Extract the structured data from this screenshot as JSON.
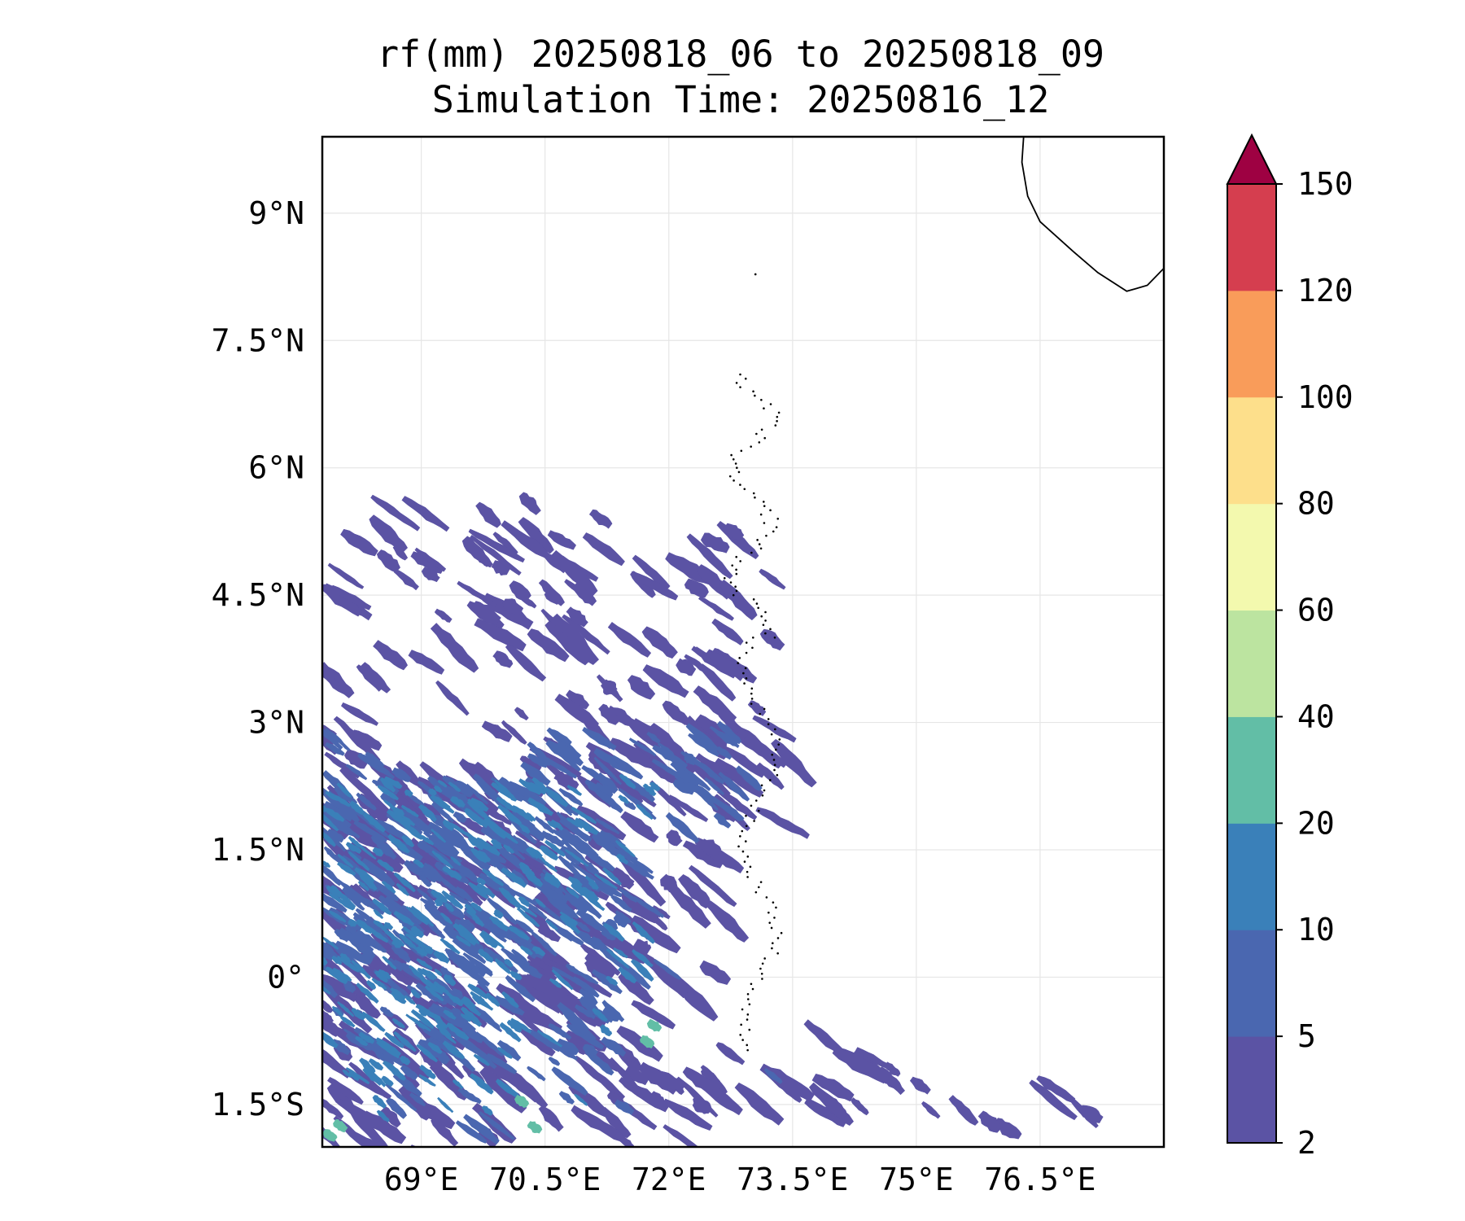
{
  "title": {
    "line1": "rf(mm) 20250818_06 to 20250818_09",
    "line2": "Simulation Time: 20250816_12"
  },
  "map": {
    "lon_range": [
      67.8,
      78.0
    ],
    "lat_range": [
      -2.0,
      9.9
    ],
    "lon_ticks": [
      69.0,
      70.5,
      72.0,
      73.5,
      75.0,
      76.5
    ],
    "lon_tick_labels": [
      "69°E",
      "70.5°E",
      "72°E",
      "73.5°E",
      "75°E",
      "76.5°E"
    ],
    "lat_ticks": [
      9.0,
      7.5,
      6.0,
      4.5,
      3.0,
      1.5,
      0.0,
      -1.5
    ],
    "lat_tick_labels": [
      "9°N",
      "7.5°N",
      "6°N",
      "4.5°N",
      "3°N",
      "1.5°N",
      "0°",
      "1.5°S"
    ],
    "gridlines": true
  },
  "colorbar": {
    "levels": [
      2,
      5,
      10,
      20,
      40,
      60,
      80,
      100,
      120,
      150
    ],
    "labels": [
      "2",
      "5",
      "10",
      "20",
      "40",
      "60",
      "80",
      "100",
      "120",
      "150"
    ],
    "colors": [
      "#5b53a4",
      "#4a67b0",
      "#3a80b9",
      "#62bea6",
      "#bce4a0",
      "#f3f9ae",
      "#fddf8b",
      "#f99c5a",
      "#d53e4f"
    ],
    "extend_color": "#9e0142",
    "extend": "max"
  },
  "colors": {
    "rain_low": "#5b53a4",
    "rain_mid": "#4a67b0",
    "rain_high": "#3a80b9",
    "rain_peak": "#62bea6",
    "coastline": "#000000",
    "grid": "#e6e6e6"
  }
}
